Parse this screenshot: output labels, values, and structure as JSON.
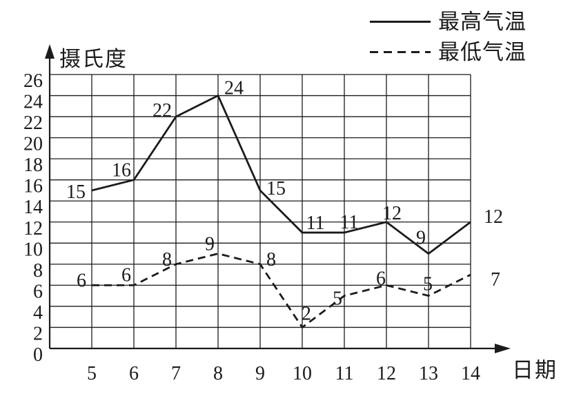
{
  "figure": {
    "background": "#ffffff",
    "ink": "#1b1b1b"
  },
  "legend": [
    {
      "label": "最高气温",
      "line_style": "solid"
    },
    {
      "label": "最低气温",
      "line_style": "dashed"
    }
  ],
  "chart_data": {
    "type": "line",
    "title": "",
    "ylabel": "摄氏度",
    "xlabel": "日期",
    "x": [
      5,
      6,
      7,
      8,
      9,
      10,
      11,
      12,
      13,
      14
    ],
    "yticks": [
      0,
      2,
      4,
      6,
      8,
      10,
      12,
      14,
      16,
      18,
      20,
      22,
      24,
      26
    ],
    "ylim": [
      0,
      26
    ],
    "grid": true,
    "legend_position": "top-right",
    "series": [
      {
        "name": "最高气温",
        "style": "solid",
        "values": [
          15,
          16,
          22,
          24,
          15,
          11,
          11,
          12,
          9,
          12
        ],
        "label_offsets": [
          [
            -23,
            1
          ],
          [
            -18,
            -15
          ],
          [
            -20,
            -10
          ],
          [
            23,
            -12
          ],
          [
            23,
            -4
          ],
          [
            19,
            -15
          ],
          [
            7,
            -16
          ],
          [
            8,
            -14
          ],
          [
            -11,
            -24
          ],
          [
            33,
            -9
          ]
        ]
      },
      {
        "name": "最低气温",
        "style": "dashed",
        "values": [
          6,
          6,
          8,
          9,
          8,
          2,
          5,
          6,
          5,
          7
        ],
        "label_offsets": [
          [
            -15,
            -8
          ],
          [
            -11,
            -16
          ],
          [
            -13,
            -8
          ],
          [
            -12,
            -15
          ],
          [
            16,
            -8
          ],
          [
            6,
            -21
          ],
          [
            -10,
            3
          ],
          [
            -8,
            -11
          ],
          [
            -1,
            -18
          ],
          [
            36,
            6
          ]
        ]
      }
    ]
  }
}
